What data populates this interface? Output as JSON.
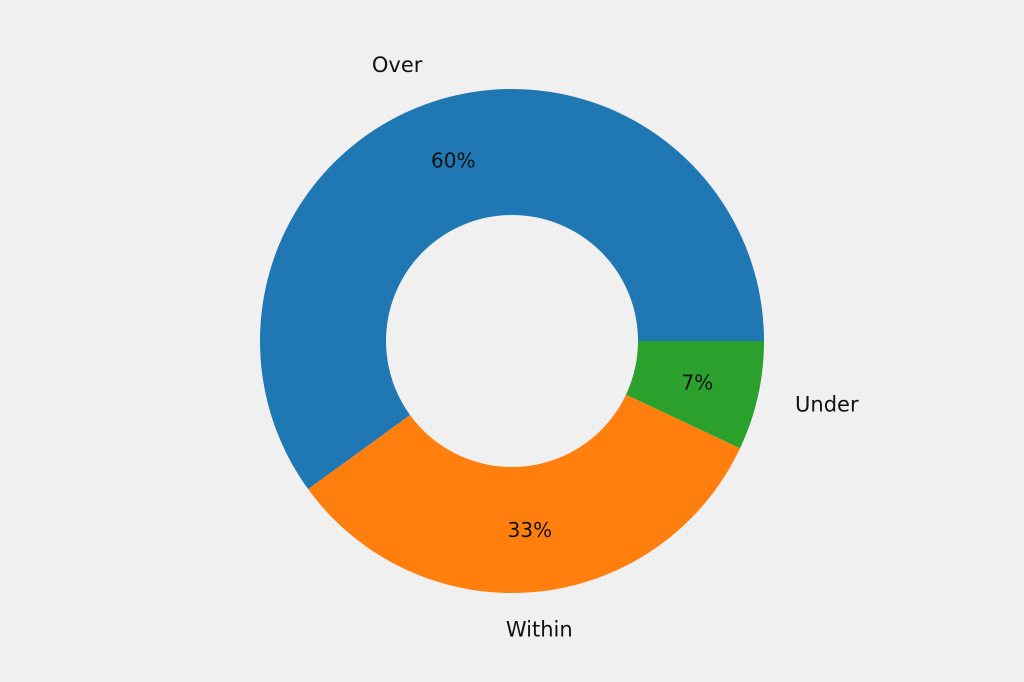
{
  "chart_data": {
    "type": "pie",
    "donut": true,
    "categories": [
      "Over",
      "Within",
      "Under"
    ],
    "values": [
      60,
      33,
      7
    ],
    "value_labels": [
      "60%",
      "33%",
      "7%"
    ],
    "colors": [
      "#1f77b4",
      "#ff7f0e",
      "#2ca02c"
    ],
    "start_angle_deg": 0,
    "direction": "counterclockwise",
    "title": "",
    "legend": "none"
  }
}
